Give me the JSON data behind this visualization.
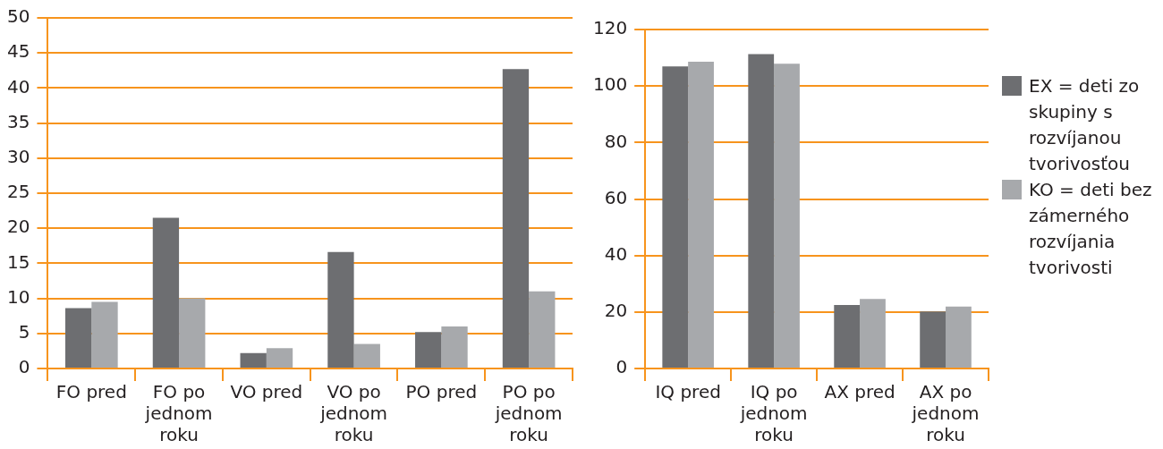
{
  "chart_data": [
    {
      "type": "bar",
      "categories": [
        "FO pred",
        "FO po jednom roku",
        "VO pred",
        "VO po jednom roku",
        "PO pred",
        "PO po jednom roku"
      ],
      "series": [
        {
          "color": "#6d6e71",
          "values": [
            8.6,
            21.5,
            2.2,
            16.6,
            5.2,
            42.7
          ]
        },
        {
          "color": "#a7a9ac",
          "values": [
            9.5,
            10,
            2.9,
            3.5,
            6.0,
            11.0
          ]
        }
      ],
      "ylim": [
        0,
        50
      ],
      "yticks": [
        0,
        5,
        10,
        15,
        20,
        25,
        30,
        35,
        40,
        45,
        50
      ],
      "grid": "y",
      "legend": false
    },
    {
      "type": "bar",
      "categories": [
        "IQ pred",
        "IQ po jednom roku",
        "AX pred",
        "AX po jednom roku"
      ],
      "series": [
        {
          "name": "EX = deti zo skupiny s rozvíjanou tvorivosťou",
          "color": "#6d6e71",
          "values": [
            106.9,
            111.3,
            22.5,
            20.2
          ]
        },
        {
          "name": "KO = deti bez zámerného rozvíjania tvorivosti",
          "color": "#a7a9ac",
          "values": [
            108.6,
            107.9,
            24.6,
            21.9
          ]
        }
      ],
      "ylim": [
        0,
        120
      ],
      "yticks": [
        0,
        20,
        40,
        60,
        80,
        100,
        120
      ],
      "grid": "y",
      "legend": "right"
    }
  ]
}
